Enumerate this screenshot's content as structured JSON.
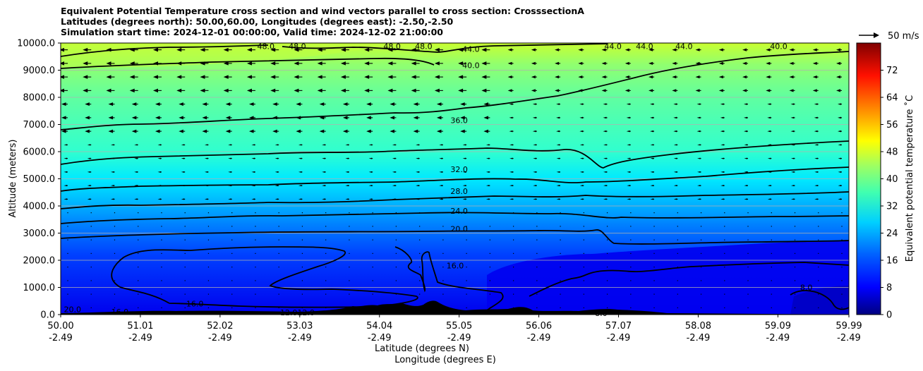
{
  "chart_data": {
    "type": "heatmap",
    "subtype": "cross-section filled contour with line contours and wind vectors",
    "title_lines": [
      "Equivalent Potential Temperature cross section and wind vectors parallel to cross section: CrosssectionA",
      "Latitudes (degrees north): 50.00,60.00, Longitudes (degrees east): -2.50,-2.50",
      "Simulation start time: 2024-12-01 00:00:00, Valid time: 2024-12-02 21:00:00"
    ],
    "xlabel_1": "Latitude (degrees N)",
    "xlabel_2": "Longitude (degrees E)",
    "ylabel": "Altitude (meters)",
    "colorbar_label": "Equivalent potential temperature ˚C",
    "quiver_key": "50 m/s",
    "x_ticks": [
      {
        "lat": "50.00",
        "lon": "-2.49"
      },
      {
        "lat": "51.01",
        "lon": "-2.49"
      },
      {
        "lat": "52.02",
        "lon": "-2.49"
      },
      {
        "lat": "53.03",
        "lon": "-2.49"
      },
      {
        "lat": "54.04",
        "lon": "-2.49"
      },
      {
        "lat": "55.05",
        "lon": "-2.49"
      },
      {
        "lat": "56.06",
        "lon": "-2.49"
      },
      {
        "lat": "57.07",
        "lon": "-2.49"
      },
      {
        "lat": "58.08",
        "lon": "-2.49"
      },
      {
        "lat": "59.09",
        "lon": "-2.49"
      },
      {
        "lat": "59.99",
        "lon": "-2.49"
      }
    ],
    "y_ticks": [
      "0.0",
      "1000.0",
      "2000.0",
      "3000.0",
      "4000.0",
      "5000.0",
      "6000.0",
      "7000.0",
      "8000.0",
      "9000.0",
      "10000.0"
    ],
    "ylim": [
      0,
      10000
    ],
    "colorbar_ticks": [
      "0",
      "8",
      "16",
      "24",
      "32",
      "40",
      "48",
      "56",
      "64",
      "72"
    ],
    "colorbar_range": [
      0,
      80
    ],
    "grid": "horizontal",
    "contour_lines": [
      {
        "value": 20.0,
        "altitude_west": 2850,
        "altitude_east": 2700
      },
      {
        "value": 24.0,
        "altitude_west": 3380,
        "altitude_east": 3650
      },
      {
        "value": 28.0,
        "altitude_west": 3950,
        "altitude_east": 4550
      },
      {
        "value": 32.0,
        "altitude_west": 4600,
        "altitude_east": 5450
      },
      {
        "value": 36.0,
        "altitude_west": 5500,
        "altitude_east": 6400
      },
      {
        "value": 40.0,
        "altitude_west": 6800,
        "altitude_east": 9550
      },
      {
        "value": 44.0,
        "altitude_west": 9100,
        "altitude_east": 10000
      }
    ],
    "contour_labels": [
      {
        "text": "48.0",
        "lat": 52.6,
        "alt": 9880
      },
      {
        "text": "48.0",
        "lat": 53.0,
        "alt": 9880
      },
      {
        "text": "48.0",
        "lat": 54.2,
        "alt": 9880
      },
      {
        "text": "48.0",
        "lat": 54.6,
        "alt": 9880
      },
      {
        "text": "44.0",
        "lat": 55.2,
        "alt": 9780
      },
      {
        "text": "40.0",
        "lat": 55.2,
        "alt": 9180
      },
      {
        "text": "44.0",
        "lat": 57.0,
        "alt": 9880
      },
      {
        "text": "44.0",
        "lat": 57.4,
        "alt": 9880
      },
      {
        "text": "44.0",
        "lat": 57.9,
        "alt": 9880
      },
      {
        "text": "40.0",
        "lat": 59.1,
        "alt": 9880
      },
      {
        "text": "36.0",
        "lat": 55.05,
        "alt": 7150
      },
      {
        "text": "32.0",
        "lat": 55.05,
        "alt": 5350
      },
      {
        "text": "28.0",
        "lat": 55.05,
        "alt": 4550
      },
      {
        "text": "24.0",
        "lat": 55.05,
        "alt": 3820
      },
      {
        "text": "20.0",
        "lat": 55.05,
        "alt": 3150
      },
      {
        "text": "16.0",
        "lat": 51.7,
        "alt": 400
      },
      {
        "text": "16.0",
        "lat": 50.75,
        "alt": 100
      },
      {
        "text": "20.0",
        "lat": 50.15,
        "alt": 200
      },
      {
        "text": "12.012.0",
        "lat": 53.0,
        "alt": 80
      },
      {
        "text": "16.0",
        "lat": 55.0,
        "alt": 1800
      },
      {
        "text": "8.0",
        "lat": 59.45,
        "alt": 1000
      },
      {
        "text": "8.0",
        "lat": 56.85,
        "alt": 50
      }
    ]
  }
}
